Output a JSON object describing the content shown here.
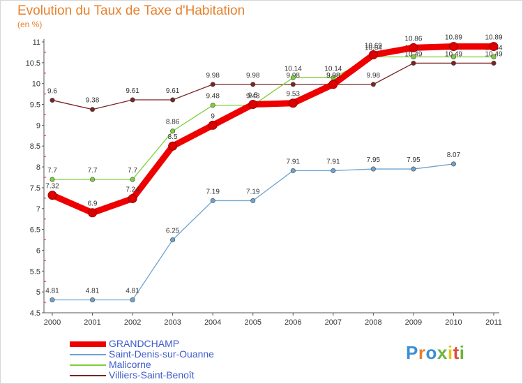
{
  "title": "Evolution du Taux de Taxe d'Habitation",
  "subtitle": "(en %)",
  "logo": {
    "text": "Proxiti",
    "colors": [
      "#3a8fd6",
      "#e8802c",
      "#3a8fd6",
      "#6ab33f",
      "#e8c21e",
      "#d94e3a",
      "#6ab33f"
    ]
  },
  "chart_data": {
    "type": "line",
    "x": [
      "2000",
      "2001",
      "2002",
      "2003",
      "2004",
      "2005",
      "2006",
      "2007",
      "2008",
      "2009",
      "2010",
      "2011"
    ],
    "ylim": [
      4.5,
      11
    ],
    "yticks": [
      "4.5",
      "5",
      "5.5",
      "6",
      "6.5",
      "7",
      "7.5",
      "8",
      "8.5",
      "9",
      "9.5",
      "10",
      "10.5",
      "11"
    ],
    "grid": false,
    "legend_position": "bottom-left",
    "series": [
      {
        "name": "Villiers-Saint-Benoît",
        "color": "#7a2424",
        "values": [
          9.6,
          9.38,
          9.61,
          9.61,
          9.98,
          9.98,
          9.98,
          9.98,
          9.98,
          10.49,
          10.49,
          10.49
        ],
        "labels": [
          "9.6",
          "9.38",
          "9.61",
          "9.61",
          "9.98",
          "9.98",
          "9.98",
          "9.98",
          "9.98",
          "10.49",
          "10.49",
          "10.49"
        ]
      },
      {
        "name": "Malicorne",
        "color": "#7ccf3a",
        "values": [
          7.7,
          7.7,
          7.7,
          8.86,
          9.48,
          9.48,
          10.14,
          10.14,
          10.64,
          10.64,
          10.64,
          10.64
        ],
        "labels": [
          "7.7",
          "7.7",
          "7.7",
          "8.86",
          "9.48",
          "9.48",
          "10.14",
          "10.14",
          "10.64",
          "10.64",
          "10.64",
          "10.64"
        ]
      },
      {
        "name": "Saint-Denis-sur-Ouanne",
        "color": "#6fa3cf",
        "values": [
          4.81,
          4.81,
          4.81,
          6.25,
          7.19,
          7.19,
          7.91,
          7.91,
          7.95,
          7.95,
          8.07,
          null
        ],
        "labels": [
          "4.81",
          "4.81",
          "4.81",
          "6.25",
          "7.19",
          "7.19",
          "7.91",
          "7.91",
          "7.95",
          "7.95",
          "8.07",
          ""
        ]
      },
      {
        "name": "GRANDCHAMP",
        "color": "#ee0000",
        "values": [
          7.32,
          6.9,
          7.24,
          8.5,
          9.0,
          9.5,
          9.53,
          9.98,
          10.69,
          10.86,
          10.89,
          10.89
        ],
        "labels": [
          "7.32",
          "6.9",
          "7.24",
          "8.5",
          "9",
          "9.5",
          "9.53",
          "9.98",
          "10.69",
          "10.86",
          "10.89",
          "10.89"
        ]
      }
    ]
  }
}
